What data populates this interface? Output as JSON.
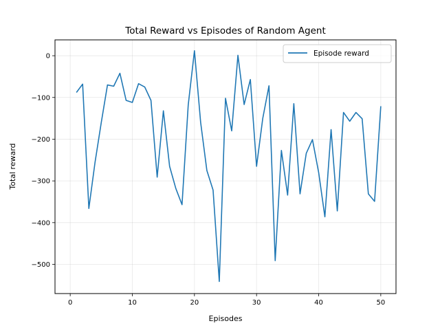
{
  "chart_data": {
    "type": "line",
    "title": "Total Reward vs Episodes of Random Agent",
    "xlabel": "Episodes",
    "ylabel": "Total reward",
    "xlim": [
      -2.45,
      52.45
    ],
    "ylim": [
      -570,
      38
    ],
    "xticks": [
      0,
      10,
      20,
      30,
      40,
      50
    ],
    "yticks": [
      -500,
      -400,
      -300,
      -200,
      -100,
      0
    ],
    "grid": true,
    "legend": "top-right",
    "series": [
      {
        "name": "Episode reward",
        "color": "#1f77b4",
        "x": [
          1,
          2,
          3,
          4,
          5,
          6,
          7,
          8,
          9,
          10,
          11,
          12,
          13,
          14,
          15,
          16,
          17,
          18,
          19,
          20,
          21,
          22,
          23,
          24,
          25,
          26,
          27,
          28,
          29,
          30,
          31,
          32,
          33,
          34,
          35,
          36,
          37,
          38,
          39,
          40,
          41,
          42,
          43,
          44,
          45,
          46,
          47,
          48,
          49,
          50
        ],
        "values": [
          -88,
          -68,
          -366,
          -255,
          -160,
          -70,
          -73,
          -42,
          -107,
          -112,
          -67,
          -75,
          -107,
          -291,
          -132,
          -265,
          -318,
          -357,
          -118,
          12,
          -160,
          -275,
          -322,
          -541,
          -102,
          -180,
          1,
          -117,
          -57,
          -265,
          -150,
          -72,
          -491,
          -227,
          -334,
          -115,
          -331,
          -234,
          -201,
          -280,
          -386,
          -177,
          -372,
          -136,
          -157,
          -136,
          -151,
          -331,
          -349,
          -121
        ]
      }
    ]
  }
}
